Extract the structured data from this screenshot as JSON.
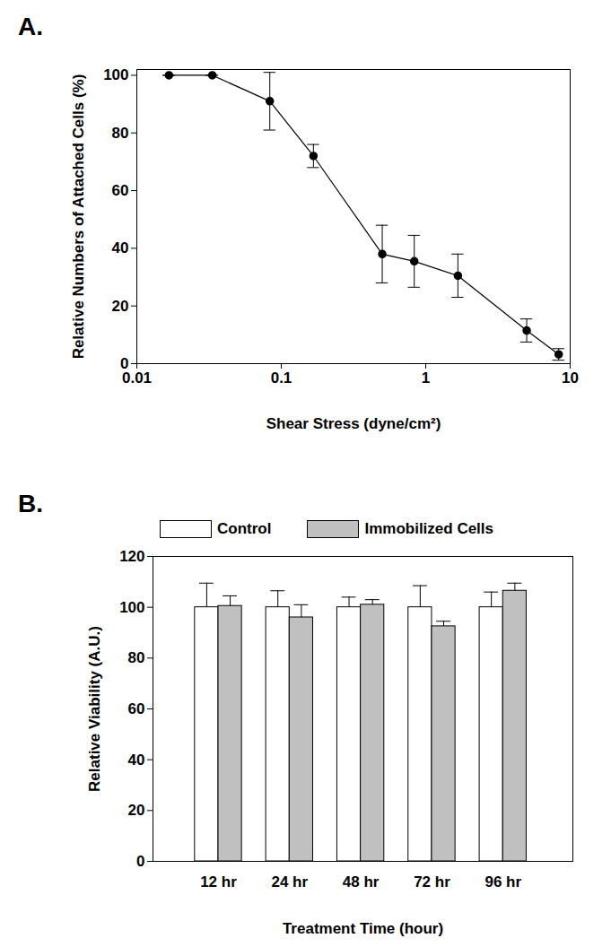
{
  "chart_data": [
    {
      "type": "line",
      "title": "A.",
      "x_label": "Shear Stress (dyne/cm²)",
      "y_label": "Relative Numbers of Attached Cells (%)",
      "x": [
        0.0167,
        0.0333,
        0.0833,
        0.167,
        0.5,
        0.833,
        1.67,
        5,
        8.33
      ],
      "values": [
        100,
        100,
        91,
        72,
        38,
        35.5,
        30.5,
        11.5,
        3.2
      ],
      "errors": [
        0,
        0,
        10,
        4,
        10,
        9,
        7.5,
        4,
        2
      ],
      "color": "#000000",
      "marker": "circle",
      "line_style": "solid",
      "log": "x",
      "xlim": [
        0.01,
        10
      ],
      "xticks": [
        0.01,
        0.1,
        1,
        10
      ],
      "ylim": [
        0,
        102
      ],
      "yticks": [
        0,
        20,
        40,
        60,
        80,
        100
      ],
      "grid": false
    },
    {
      "type": "bar",
      "title": "B.",
      "x_label": "Treatment Time (hour)",
      "y_label": "Relative Viability (A.U.)",
      "categories": [
        "12 hr",
        "24 hr",
        "48 hr",
        "72 hr",
        "96 hr"
      ],
      "series": [
        {
          "name": "Control",
          "color": "#ffffff",
          "values": [
            100,
            100,
            100,
            100,
            100
          ],
          "errors": [
            9.5,
            6.5,
            4,
            8.5,
            6
          ]
        },
        {
          "name": "Immobilized Cells",
          "color": "#c0c0c0",
          "values": [
            100.5,
            96,
            101,
            92.5,
            106.5
          ],
          "errors": [
            4,
            5,
            2,
            2,
            3
          ]
        }
      ],
      "ylim": [
        0,
        120
      ],
      "yticks": [
        0,
        20,
        40,
        60,
        80,
        100,
        120
      ],
      "legend": "top",
      "grid": false
    }
  ]
}
